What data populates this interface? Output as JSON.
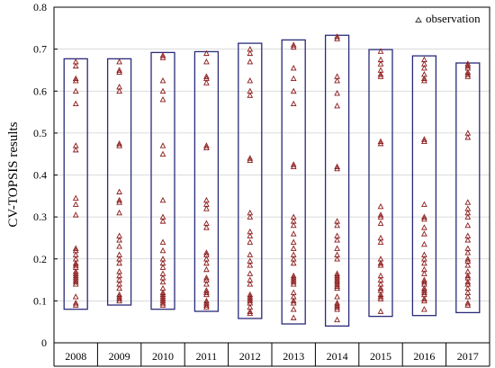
{
  "chart_data": {
    "type": "scatter",
    "title": "",
    "xlabel": "",
    "ylabel": "CV-TOPSIS results",
    "legend": {
      "label": "observation",
      "position": "top-right"
    },
    "grid": true,
    "ylim": [
      0,
      0.8
    ],
    "yticks": [
      "0",
      "0.1",
      "0.2",
      "0.3",
      "0.4",
      "0.5",
      "0.6",
      "0.7",
      "0.8"
    ],
    "categories": [
      "2008",
      "2009",
      "2010",
      "2011",
      "2012",
      "2013",
      "2014",
      "2015",
      "2016",
      "2017"
    ],
    "ranges": [
      [
        0.08,
        0.677
      ],
      [
        0.09,
        0.677
      ],
      [
        0.08,
        0.692
      ],
      [
        0.075,
        0.694
      ],
      [
        0.058,
        0.714
      ],
      [
        0.045,
        0.722
      ],
      [
        0.04,
        0.733
      ],
      [
        0.063,
        0.699
      ],
      [
        0.065,
        0.684
      ],
      [
        0.072,
        0.667
      ]
    ],
    "series": [
      {
        "name": "observation",
        "values": [
          [
            0.67,
            0.66,
            0.63,
            0.625,
            0.6,
            0.57,
            0.47,
            0.46,
            0.345,
            0.33,
            0.305,
            0.225,
            0.22,
            0.21,
            0.2,
            0.19,
            0.185,
            0.18,
            0.17,
            0.165,
            0.16,
            0.155,
            0.15,
            0.145,
            0.14,
            0.11,
            0.095,
            0.09
          ],
          [
            0.67,
            0.65,
            0.645,
            0.61,
            0.6,
            0.475,
            0.47,
            0.36,
            0.34,
            0.335,
            0.31,
            0.255,
            0.245,
            0.23,
            0.21,
            0.2,
            0.19,
            0.17,
            0.16,
            0.15,
            0.14,
            0.13,
            0.115,
            0.11,
            0.105,
            0.1
          ],
          [
            0.685,
            0.68,
            0.625,
            0.6,
            0.58,
            0.47,
            0.45,
            0.34,
            0.3,
            0.29,
            0.24,
            0.22,
            0.2,
            0.19,
            0.18,
            0.165,
            0.155,
            0.145,
            0.13,
            0.12,
            0.115,
            0.11,
            0.105,
            0.1,
            0.095,
            0.09
          ],
          [
            0.69,
            0.67,
            0.635,
            0.63,
            0.62,
            0.47,
            0.465,
            0.34,
            0.33,
            0.32,
            0.285,
            0.275,
            0.215,
            0.21,
            0.2,
            0.19,
            0.175,
            0.155,
            0.15,
            0.14,
            0.125,
            0.12,
            0.115,
            0.1,
            0.095,
            0.09,
            0.085
          ],
          [
            0.7,
            0.69,
            0.67,
            0.625,
            0.6,
            0.59,
            0.44,
            0.435,
            0.31,
            0.3,
            0.265,
            0.255,
            0.24,
            0.21,
            0.195,
            0.185,
            0.165,
            0.15,
            0.14,
            0.115,
            0.11,
            0.105,
            0.1,
            0.095,
            0.085,
            0.075,
            0.07
          ],
          [
            0.71,
            0.705,
            0.655,
            0.63,
            0.6,
            0.57,
            0.425,
            0.42,
            0.3,
            0.29,
            0.28,
            0.26,
            0.24,
            0.225,
            0.21,
            0.2,
            0.19,
            0.16,
            0.155,
            0.15,
            0.145,
            0.14,
            0.12,
            0.11,
            0.1,
            0.095,
            0.08,
            0.06
          ],
          [
            0.73,
            0.725,
            0.635,
            0.625,
            0.595,
            0.565,
            0.42,
            0.415,
            0.29,
            0.28,
            0.255,
            0.245,
            0.225,
            0.21,
            0.2,
            0.165,
            0.16,
            0.155,
            0.15,
            0.145,
            0.14,
            0.135,
            0.13,
            0.11,
            0.095,
            0.09,
            0.085,
            0.08,
            0.055
          ],
          [
            0.695,
            0.675,
            0.665,
            0.65,
            0.64,
            0.635,
            0.48,
            0.475,
            0.325,
            0.305,
            0.3,
            0.285,
            0.25,
            0.24,
            0.2,
            0.19,
            0.185,
            0.16,
            0.15,
            0.14,
            0.13,
            0.125,
            0.115,
            0.11,
            0.105,
            0.075
          ],
          [
            0.675,
            0.665,
            0.655,
            0.64,
            0.63,
            0.625,
            0.485,
            0.48,
            0.33,
            0.3,
            0.295,
            0.275,
            0.26,
            0.235,
            0.21,
            0.2,
            0.19,
            0.175,
            0.165,
            0.15,
            0.145,
            0.14,
            0.13,
            0.125,
            0.12,
            0.115,
            0.105,
            0.1,
            0.08
          ],
          [
            0.665,
            0.66,
            0.655,
            0.645,
            0.64,
            0.635,
            0.5,
            0.49,
            0.335,
            0.32,
            0.31,
            0.3,
            0.28,
            0.255,
            0.245,
            0.225,
            0.215,
            0.2,
            0.195,
            0.185,
            0.17,
            0.16,
            0.155,
            0.145,
            0.14,
            0.13,
            0.12,
            0.11,
            0.095,
            0.09
          ]
        ]
      }
    ]
  }
}
